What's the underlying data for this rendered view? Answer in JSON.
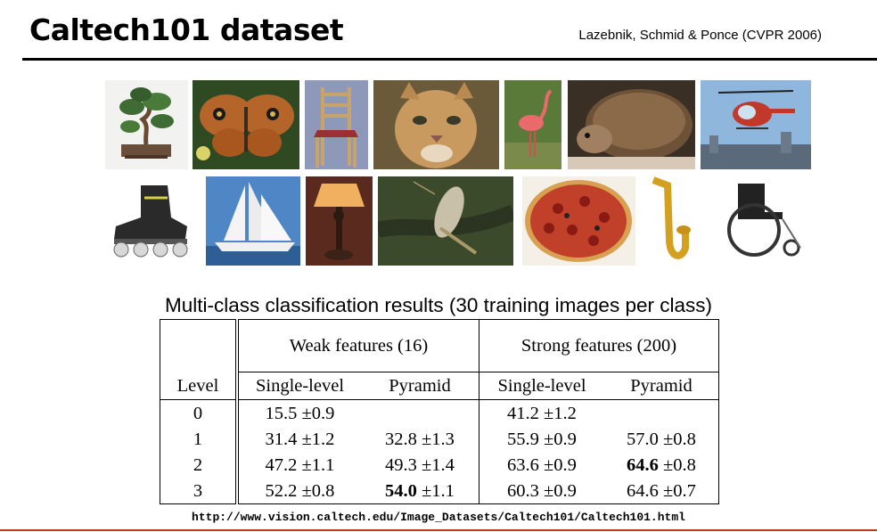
{
  "slide": {
    "title": "Caltech101 dataset",
    "citation": "Lazebnik, Schmid & Ponce (CVPR 2006)",
    "caption": "Multi-class classification results (30 training images per class)",
    "url": "http://www.vision.caltech.edu/Image_Datasets/Caltech101/Caltech101.html"
  },
  "images": [
    {
      "name": "bonsai"
    },
    {
      "name": "butterfly"
    },
    {
      "name": "chair"
    },
    {
      "name": "cougar"
    },
    {
      "name": "flamingo"
    },
    {
      "name": "hedgehog"
    },
    {
      "name": "helicopter"
    },
    {
      "name": "inline-skate"
    },
    {
      "name": "sailboat"
    },
    {
      "name": "lamp"
    },
    {
      "name": "mayfly"
    },
    {
      "name": "pizza"
    },
    {
      "name": "saxophone"
    },
    {
      "name": "wheelchair"
    }
  ],
  "table": {
    "groups": [
      "Weak features (16)",
      "Strong features (200)"
    ],
    "columns": [
      "Level",
      "Single-level",
      "Pyramid",
      "Single-level",
      "Pyramid"
    ],
    "rows": [
      {
        "level": "0",
        "weak_single": "15.5 ±0.9",
        "weak_pyr": "",
        "weak_pyr_bold": "",
        "strong_single": "41.2 ±1.2",
        "strong_pyr": "",
        "strong_pyr_bold": ""
      },
      {
        "level": "1",
        "weak_single": "31.4 ±1.2",
        "weak_pyr": "32.8 ±1.3",
        "weak_pyr_bold": "",
        "strong_single": "55.9 ±0.9",
        "strong_pyr": "57.0 ±0.8",
        "strong_pyr_bold": ""
      },
      {
        "level": "2",
        "weak_single": "47.2 ±1.1",
        "weak_pyr": "49.3 ±1.4",
        "weak_pyr_bold": "",
        "strong_single": "63.6 ±0.9",
        "strong_pyr": " ±0.8",
        "strong_pyr_bold": "64.6"
      },
      {
        "level": "3",
        "weak_single": "52.2 ±0.8",
        "weak_pyr": " ±1.1",
        "weak_pyr_bold": "54.0",
        "strong_single": "60.3 ±0.9",
        "strong_pyr": "64.6 ±0.7",
        "strong_pyr_bold": ""
      }
    ]
  }
}
